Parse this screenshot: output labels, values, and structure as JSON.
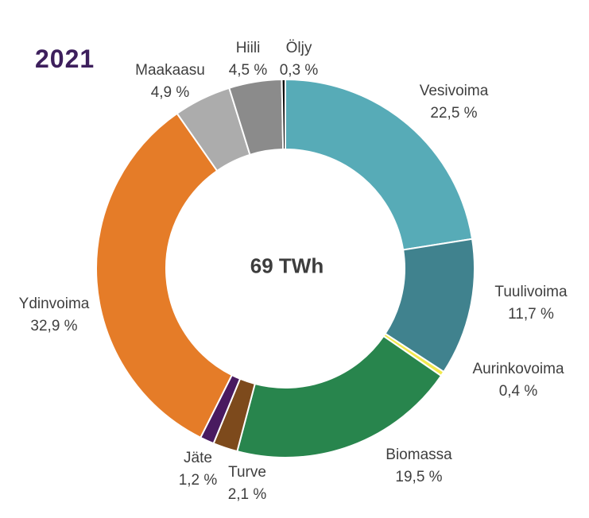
{
  "chart_data": {
    "type": "pie",
    "subtype": "donut",
    "title": "2021",
    "center_label": "69 TWh",
    "value_unit": "%",
    "start_angle": "top",
    "direction": "clockwise",
    "legend": "none",
    "labels_position": "outside",
    "slices": [
      {
        "name": "Vesivoima",
        "value": 22.5,
        "pct_label": "22,5 %",
        "color": "#57abb7"
      },
      {
        "name": "Tuulivoima",
        "value": 11.7,
        "pct_label": "11,7 %",
        "color": "#40828e"
      },
      {
        "name": "Aurinkovoima",
        "value": 0.4,
        "pct_label": "0,4 %",
        "color": "#f2e94e"
      },
      {
        "name": "Biomassa",
        "value": 19.5,
        "pct_label": "19,5 %",
        "color": "#28854d"
      },
      {
        "name": "Turve",
        "value": 2.1,
        "pct_label": "2,1 %",
        "color": "#7d4a1c"
      },
      {
        "name": "Jäte",
        "value": 1.2,
        "pct_label": "1,2 %",
        "color": "#491a60"
      },
      {
        "name": "Ydinvoima",
        "value": 32.9,
        "pct_label": "32,9 %",
        "color": "#e57c28"
      },
      {
        "name": "Maakaasu",
        "value": 4.9,
        "pct_label": "4,9 %",
        "color": "#acacac"
      },
      {
        "name": "Hiili",
        "value": 4.5,
        "pct_label": "4,5 %",
        "color": "#8b8b8b"
      },
      {
        "name": "Öljy",
        "value": 0.3,
        "pct_label": "0,3 %",
        "color": "#0d0d0d"
      }
    ],
    "colors": {
      "label_text": "#3f3f3f",
      "title_text": "#3d1f5c",
      "center_text": "#3d3d3d",
      "slice_separator": "#ffffff"
    }
  }
}
